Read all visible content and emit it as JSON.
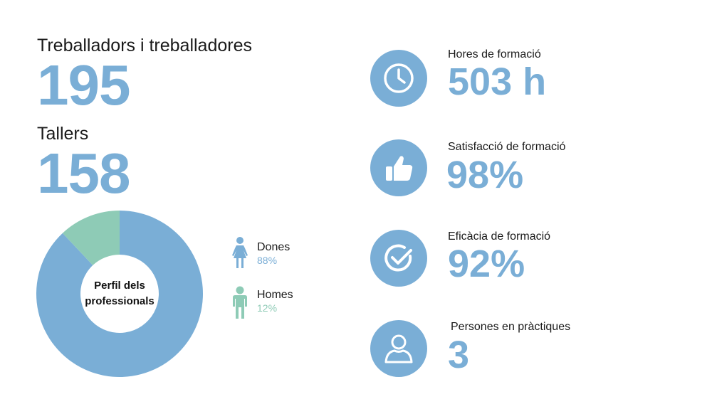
{
  "workers": {
    "label": "Treballadors i treballadores",
    "value": "195"
  },
  "workshops": {
    "label": "Tallers",
    "value": "158"
  },
  "stats": [
    {
      "label": "Hores de formació",
      "value": "503 h",
      "icon": "clock-icon"
    },
    {
      "label": "Satisfacció de formació",
      "value": "98%",
      "icon": "thumbs-up-icon"
    },
    {
      "label": "Eficàcia de formació",
      "value": "92%",
      "icon": "check-circle-icon"
    },
    {
      "label": "Persones en pràctiques",
      "value": "3",
      "icon": "user-icon"
    }
  ],
  "colors": {
    "blue": "#7aaed6",
    "green": "#8ecbb6"
  },
  "chart_data": {
    "type": "pie",
    "title": "Perfil dels professionals",
    "series": [
      {
        "name": "Dones",
        "value": 88,
        "label": "88%",
        "color": "#7aaed6",
        "icon": "woman-icon"
      },
      {
        "name": "Homes",
        "value": 12,
        "label": "12%",
        "color": "#8ecbb6",
        "icon": "man-icon"
      }
    ]
  }
}
